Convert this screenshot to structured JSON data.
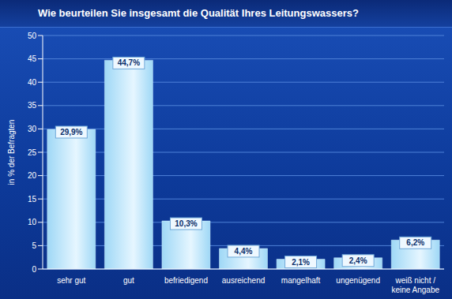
{
  "chart_data": {
    "type": "bar",
    "title": "Wie beurteilen Sie insgesamt die Qualität Ihres Leitungswassers?",
    "ylabel": "in % der Befragten",
    "categories": [
      "sehr gut",
      "gut",
      "befriedigend",
      "ausreichend",
      "mangelhaft",
      "ungenügend",
      "weiß nicht / keine Angabe"
    ],
    "values": [
      29.9,
      44.7,
      10.3,
      4.4,
      2.1,
      2.4,
      6.2
    ],
    "value_labels": [
      "29,9%",
      "44,7%",
      "10,3%",
      "4,4%",
      "2,1%",
      "2,4%",
      "6,2%"
    ],
    "color": "#9fd8f6",
    "ylim": [
      0,
      50
    ],
    "yticks": [
      0,
      5,
      10,
      15,
      20,
      25,
      30,
      35,
      40,
      45,
      50
    ],
    "grid": true,
    "data_labels": true
  }
}
